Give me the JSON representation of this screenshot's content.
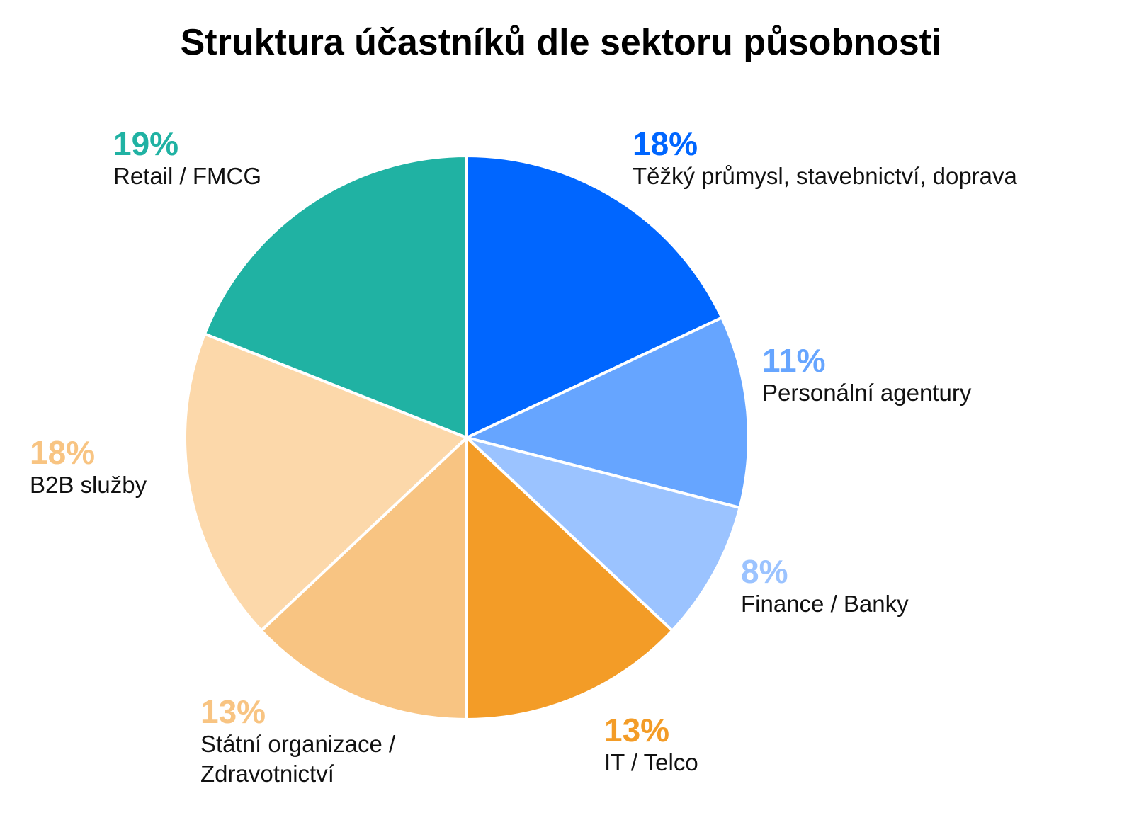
{
  "chart_data": {
    "type": "pie",
    "title": "Struktura účastníků dle sektoru působnosti",
    "start_angle_deg": 0,
    "direction": "clockwise",
    "slices": [
      {
        "label": "Těžký průmysl, stavebnictví, doprava",
        "value": 18,
        "value_label": "18%",
        "color": "#0066FF"
      },
      {
        "label": "Personální agentury",
        "value": 11,
        "value_label": "11%",
        "color": "#66A5FF"
      },
      {
        "label": "Finance / Banky",
        "value": 8,
        "value_label": "8%",
        "color": "#9BC3FF"
      },
      {
        "label": "IT / Telco",
        "value": 13,
        "value_label": "13%",
        "color": "#F39C27"
      },
      {
        "label": "Státní organizace /\nZdravotnictví",
        "value": 13,
        "value_label": "13%",
        "color": "#F8C482"
      },
      {
        "label": "B2B služby",
        "value": 18,
        "value_label": "18%",
        "color": "#FCD8AA"
      },
      {
        "label": "Retail / FMCG",
        "value": 19,
        "value_label": "19%",
        "color": "#20B2A3"
      }
    ],
    "legend": "none"
  }
}
